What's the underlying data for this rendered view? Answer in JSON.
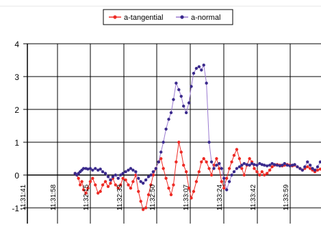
{
  "chart_data": {
    "type": "line",
    "legend_position": "top-center",
    "grid": true,
    "ylim": [
      -1,
      4
    ],
    "y_ticks": [
      "4",
      "3",
      "2",
      "1",
      "0",
      "-1"
    ],
    "x_ticks": [
      "11:31:41",
      "11:31:58",
      "11:32:15",
      "11:32:33",
      "11:32:50",
      "11:33:07",
      "11:33:24",
      "11:33:42",
      "11:33:59"
    ],
    "x_start": "11:31:41",
    "x_end": "11:33:59",
    "series": [
      {
        "name": "a-tangential",
        "color": "#ee2a24",
        "values": [
          [
            -0.3,
            0.05
          ],
          [
            -0.35,
            0.0
          ],
          [
            -0.4,
            -0.1
          ],
          [
            -0.45,
            -0.3
          ],
          [
            -0.5,
            -0.2
          ],
          [
            -0.55,
            -0.45
          ],
          [
            -0.62,
            -0.55
          ],
          [
            -0.68,
            -0.4
          ],
          [
            -0.75,
            -0.2
          ],
          [
            -0.82,
            -0.1
          ],
          [
            -0.9,
            -0.3
          ],
          [
            -0.98,
            -0.55
          ],
          [
            -1.05,
            -0.5
          ],
          [
            -1.12,
            -0.3
          ],
          [
            -1.2,
            -0.2
          ],
          [
            -1.28,
            -0.35
          ],
          [
            -1.35,
            -0.25
          ],
          [
            -1.42,
            -0.1
          ],
          [
            -1.5,
            -0.3
          ],
          [
            -1.58,
            -0.4
          ],
          [
            -1.65,
            -0.3
          ],
          [
            -1.72,
            -0.1
          ],
          [
            -1.8,
            -0.15
          ],
          [
            -1.88,
            -0.3
          ],
          [
            -1.95,
            -0.4
          ],
          [
            -2.02,
            -0.2
          ],
          [
            -2.1,
            0.0
          ],
          [
            -2.18,
            -0.5
          ],
          [
            -2.25,
            -0.8
          ],
          [
            -2.32,
            -1.05
          ],
          [
            -2.4,
            -1.0
          ],
          [
            -2.48,
            -0.6
          ],
          [
            -2.55,
            -0.3
          ],
          [
            -2.62,
            0.0
          ],
          [
            -2.7,
            0.2
          ],
          [
            -2.78,
            0.4
          ],
          [
            -2.85,
            0.5
          ],
          [
            -2.92,
            0.2
          ],
          [
            -3.0,
            -0.1
          ],
          [
            -3.08,
            -0.4
          ],
          [
            -3.15,
            -0.6
          ],
          [
            -3.22,
            -0.3
          ],
          [
            -3.3,
            0.4
          ],
          [
            -3.38,
            1.0
          ],
          [
            -3.45,
            0.7
          ],
          [
            -3.52,
            0.3
          ],
          [
            -3.6,
            0.1
          ],
          [
            -3.68,
            -0.4
          ],
          [
            -3.75,
            -0.7
          ],
          [
            -3.82,
            -0.5
          ],
          [
            -3.9,
            -0.2
          ],
          [
            -3.98,
            0.1
          ],
          [
            -4.05,
            0.4
          ],
          [
            -4.12,
            0.5
          ],
          [
            -4.2,
            0.4
          ],
          [
            -4.28,
            0.2
          ],
          [
            -4.35,
            0.0
          ],
          [
            -4.42,
            0.3
          ],
          [
            -4.5,
            0.5
          ],
          [
            -4.58,
            0.2
          ],
          [
            -4.65,
            -0.2
          ],
          [
            -4.72,
            -0.4
          ],
          [
            -4.8,
            -0.1
          ],
          [
            -4.88,
            0.2
          ],
          [
            -4.95,
            0.4
          ],
          [
            -5.02,
            0.6
          ],
          [
            -5.1,
            0.78
          ],
          [
            -5.18,
            0.5
          ],
          [
            -5.25,
            0.2
          ],
          [
            -5.32,
            0.0
          ],
          [
            -5.4,
            0.3
          ],
          [
            -5.48,
            0.5
          ],
          [
            -5.55,
            0.4
          ],
          [
            -5.62,
            0.2
          ],
          [
            -5.7,
            0.1
          ],
          [
            -5.78,
            0.0
          ],
          [
            -5.85,
            0.1
          ],
          [
            -5.92,
            0.0
          ],
          [
            -6.0,
            0.05
          ],
          [
            -6.08,
            0.15
          ],
          [
            -6.15,
            0.25
          ],
          [
            -6.22,
            0.3
          ],
          [
            -6.3,
            0.32
          ],
          [
            -6.38,
            0.3
          ],
          [
            -6.45,
            0.28
          ],
          [
            -6.52,
            0.3
          ],
          [
            -6.6,
            0.32
          ],
          [
            -6.68,
            0.3
          ],
          [
            -6.75,
            0.28
          ],
          [
            -6.82,
            0.3
          ],
          [
            -6.9,
            0.25
          ],
          [
            -6.98,
            0.2
          ],
          [
            -7.05,
            0.15
          ],
          [
            -7.12,
            0.2
          ],
          [
            -7.2,
            0.25
          ],
          [
            -7.28,
            0.2
          ],
          [
            -7.35,
            0.15
          ],
          [
            -7.42,
            0.1
          ],
          [
            -7.5,
            0.15
          ],
          [
            -7.58,
            0.18
          ],
          [
            -7.65,
            0.15
          ],
          [
            -7.72,
            0.1
          ],
          [
            -7.8,
            0.15
          ],
          [
            -7.88,
            0.1
          ],
          [
            -7.95,
            0.05
          ],
          [
            -8.02,
            0.08
          ],
          [
            -8.1,
            0.1
          ],
          [
            -8.18,
            0.05
          ],
          [
            -8.25,
            0.08
          ],
          [
            -8.32,
            0.05
          ]
        ]
      },
      {
        "name": "a-normal",
        "color": "#3a2a8c",
        "values": [
          [
            -0.3,
            0.05
          ],
          [
            -0.35,
            0.0
          ],
          [
            -0.4,
            0.05
          ],
          [
            -0.45,
            0.1
          ],
          [
            -0.5,
            0.15
          ],
          [
            -0.55,
            0.2
          ],
          [
            -0.62,
            0.2
          ],
          [
            -0.68,
            0.18
          ],
          [
            -0.75,
            0.2
          ],
          [
            -0.82,
            0.15
          ],
          [
            -0.9,
            0.2
          ],
          [
            -0.98,
            0.15
          ],
          [
            -1.05,
            0.18
          ],
          [
            -1.12,
            0.1
          ],
          [
            -1.2,
            0.05
          ],
          [
            -1.28,
            -0.05
          ],
          [
            -1.35,
            -0.15
          ],
          [
            -1.42,
            -0.05
          ],
          [
            -1.5,
            0.0
          ],
          [
            -1.58,
            -0.1
          ],
          [
            -1.65,
            0.0
          ],
          [
            -1.72,
            0.05
          ],
          [
            -1.8,
            0.1
          ],
          [
            -1.88,
            0.15
          ],
          [
            -1.95,
            0.2
          ],
          [
            -2.02,
            0.15
          ],
          [
            -2.1,
            0.1
          ],
          [
            -2.18,
            -0.1
          ],
          [
            -2.25,
            -0.2
          ],
          [
            -2.32,
            -0.25
          ],
          [
            -2.4,
            -0.15
          ],
          [
            -2.48,
            -0.05
          ],
          [
            -2.55,
            0.0
          ],
          [
            -2.62,
            0.1
          ],
          [
            -2.7,
            0.2
          ],
          [
            -2.78,
            0.4
          ],
          [
            -2.85,
            0.7
          ],
          [
            -2.92,
            1.0
          ],
          [
            -3.0,
            1.4
          ],
          [
            -3.08,
            1.7
          ],
          [
            -3.15,
            1.9
          ],
          [
            -3.22,
            2.3
          ],
          [
            -3.3,
            2.8
          ],
          [
            -3.38,
            2.6
          ],
          [
            -3.45,
            2.4
          ],
          [
            -3.52,
            2.1
          ],
          [
            -3.6,
            1.9
          ],
          [
            -3.68,
            2.2
          ],
          [
            -3.75,
            2.7
          ],
          [
            -3.82,
            3.1
          ],
          [
            -3.9,
            3.25
          ],
          [
            -3.98,
            3.3
          ],
          [
            -4.05,
            3.2
          ],
          [
            -4.12,
            3.35
          ],
          [
            -4.2,
            2.8
          ],
          [
            -4.28,
            1.0
          ],
          [
            -4.35,
            0.4
          ],
          [
            -4.42,
            0.2
          ],
          [
            -4.5,
            0.3
          ],
          [
            -4.58,
            0.35
          ],
          [
            -4.65,
            0.2
          ],
          [
            -4.72,
            -0.1
          ],
          [
            -4.8,
            -0.45
          ],
          [
            -4.88,
            -0.2
          ],
          [
            -4.95,
            0.0
          ],
          [
            -5.02,
            0.1
          ],
          [
            -5.1,
            0.2
          ],
          [
            -5.18,
            0.25
          ],
          [
            -5.25,
            0.3
          ],
          [
            -5.32,
            0.35
          ],
          [
            -5.4,
            0.32
          ],
          [
            -5.48,
            0.3
          ],
          [
            -5.55,
            0.35
          ],
          [
            -5.62,
            0.32
          ],
          [
            -5.7,
            0.3
          ],
          [
            -5.78,
            0.35
          ],
          [
            -5.85,
            0.32
          ],
          [
            -5.92,
            0.3
          ],
          [
            -6.0,
            0.28
          ],
          [
            -6.08,
            0.3
          ],
          [
            -6.15,
            0.35
          ],
          [
            -6.22,
            0.32
          ],
          [
            -6.3,
            0.3
          ],
          [
            -6.38,
            0.28
          ],
          [
            -6.45,
            0.3
          ],
          [
            -6.52,
            0.35
          ],
          [
            -6.6,
            0.3
          ],
          [
            -6.68,
            0.28
          ],
          [
            -6.75,
            0.3
          ],
          [
            -6.82,
            0.32
          ],
          [
            -6.9,
            0.25
          ],
          [
            -6.98,
            0.2
          ],
          [
            -7.05,
            0.15
          ],
          [
            -7.12,
            0.25
          ],
          [
            -7.2,
            0.4
          ],
          [
            -7.28,
            0.3
          ],
          [
            -7.35,
            0.2
          ],
          [
            -7.42,
            0.15
          ],
          [
            -7.5,
            0.25
          ],
          [
            -7.58,
            0.4
          ],
          [
            -7.65,
            0.38
          ],
          [
            -7.72,
            0.35
          ],
          [
            -7.8,
            0.4
          ],
          [
            -7.88,
            0.3
          ],
          [
            -7.95,
            0.25
          ],
          [
            -8.02,
            0.3
          ],
          [
            -8.1,
            0.35
          ],
          [
            -8.18,
            0.3
          ],
          [
            -8.25,
            0.28
          ],
          [
            -8.32,
            0.3
          ]
        ]
      }
    ]
  }
}
